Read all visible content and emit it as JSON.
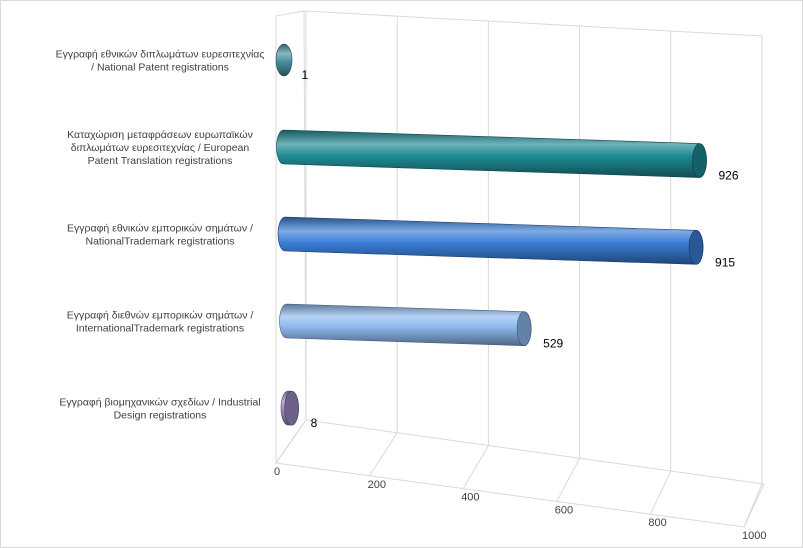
{
  "chart_data": {
    "type": "bar",
    "orientation": "horizontal",
    "style": "3d-cylinder",
    "categories": [
      "Εγγραφή εθνικών  διπλωμάτων ευρεσιτεχνίας\n/ National Patent registrations",
      "Καταχώριση μεταφράσεων ευρωπαϊκών\nδιπλωμάτων ευρεσιτεχνίας / European\nPatent Translation registrations",
      "Εγγραφή εθνικών  εμπορικών σημάτων  /\nNationalTrademark registrations",
      "Εγγραφή διεθνών  εμπορικών σημάτων  /\nInternationalTrademark registrations",
      "Εγγραφή βιομηχανικών σχεδίων  / Industrial\nDesign registrations"
    ],
    "values": [
      1,
      926,
      915,
      529,
      8
    ],
    "data_labels": [
      "1",
      "926",
      "915",
      "529",
      "8"
    ],
    "colors": [
      "#4a8f9e",
      "#1e8a94",
      "#3a7dd6",
      "#8db9ef",
      "#9c8ac4"
    ],
    "x_ticks": [
      "0",
      "200",
      "400",
      "600",
      "800",
      "1000"
    ],
    "xlim": [
      0,
      1000
    ],
    "grid": true,
    "legend": "none"
  }
}
